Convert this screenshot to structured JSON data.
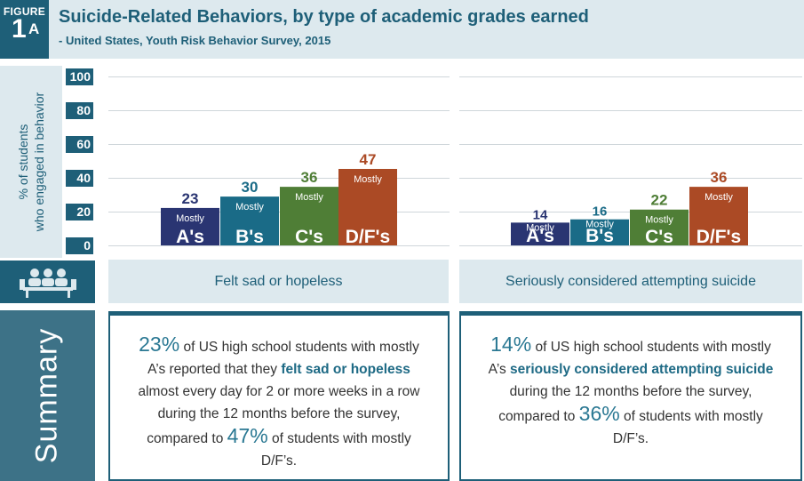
{
  "figure": {
    "label": "FIGURE",
    "number": "1",
    "sub": "A"
  },
  "title": "Suicide-Related Behaviors, by type of academic grades earned",
  "subtitle": "- United States, Youth Risk Behavior Survey, 2015",
  "ylabel": {
    "line1": "% of students",
    "line2": "who engaged in behavior"
  },
  "summary_label": "Summary",
  "icons": {
    "students": "students-at-desks-icon"
  },
  "colors": {
    "mostly_a": "#2a3572",
    "mostly_b": "#1a6b87",
    "mostly_c": "#4f7e36",
    "mostly_df": "#ab4a25",
    "teal": "#1e5f78",
    "panel": "#dde9ee"
  },
  "chart_data": [
    {
      "type": "bar",
      "caption": "Felt sad or hopeless",
      "categories": [
        "Mostly A's",
        "Mostly B's",
        "Mostly C's",
        "Mostly D/F's"
      ],
      "bar_labels": [
        {
          "small": "Mostly",
          "large": "A's"
        },
        {
          "small": "Mostly",
          "large": "B's"
        },
        {
          "small": "Mostly",
          "large": "C's"
        },
        {
          "small": "Mostly",
          "large": "D/F's"
        }
      ],
      "values": [
        23,
        30,
        36,
        47
      ],
      "ylim": [
        0,
        100
      ],
      "yticks": [
        "100",
        "80",
        "60",
        "40",
        "20",
        "0"
      ],
      "grid": true
    },
    {
      "type": "bar",
      "caption": "Seriously considered attempting suicide",
      "categories": [
        "Mostly A's",
        "Mostly B's",
        "Mostly C's",
        "Mostly D/F's"
      ],
      "bar_labels": [
        {
          "small": "Mostly",
          "large": "A's"
        },
        {
          "small": "Mostly",
          "large": "B's"
        },
        {
          "small": "Mostly",
          "large": "C's"
        },
        {
          "small": "Mostly",
          "large": "D/F's"
        }
      ],
      "values": [
        14,
        16,
        22,
        36
      ],
      "ylim": [
        0,
        100
      ],
      "yticks": [
        "100",
        "80",
        "60",
        "40",
        "20",
        "0"
      ],
      "grid": true
    }
  ],
  "summaries": [
    {
      "big1": "23%",
      "t1": " of US high school students with mostly A’s reported that they ",
      "em": "felt sad or hopeless",
      "t2": " almost every day for 2 or more weeks in a row during the 12 months before the survey, compared to ",
      "big2": "47%",
      "t3": " of students with mostly D/F’s."
    },
    {
      "big1": "14%",
      "t1": " of US high school students with mostly A’s ",
      "em": "seriously considered attempting suicide",
      "t2": " during the 12 months before the survey, compared to ",
      "big2": "36%",
      "t3": " of students with mostly D/F’s."
    }
  ]
}
